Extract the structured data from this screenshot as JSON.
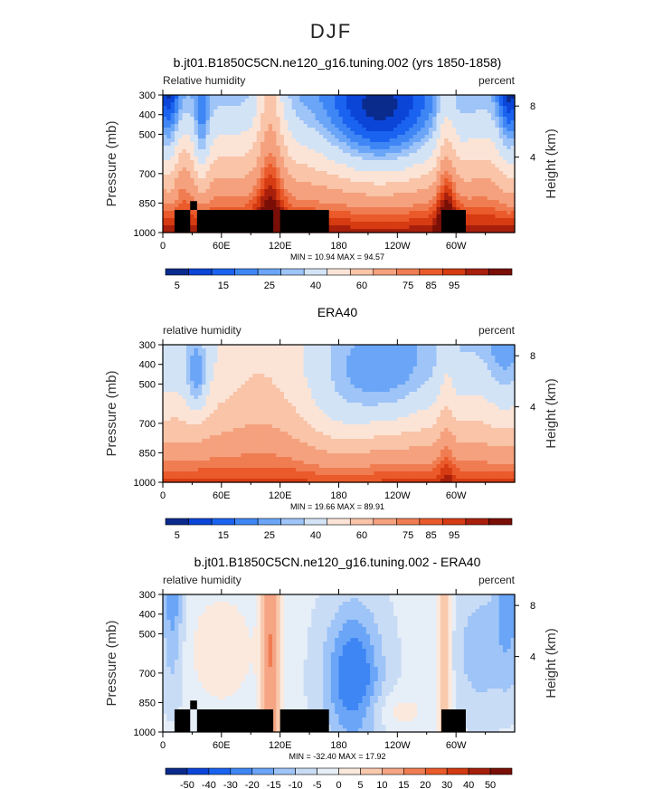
{
  "figure_title": "DJF",
  "colors": {
    "relhum": [
      "#0a2a8c",
      "#0b45d8",
      "#1a63f0",
      "#3f86f5",
      "#6aa5f7",
      "#9ec4f8",
      "#d3e3f6",
      "#fbe4d6",
      "#f9c4a8",
      "#f5a17e",
      "#f07d52",
      "#ea5a2a",
      "#d63b12",
      "#a8200c",
      "#7a0f07"
    ],
    "diff": [
      "#0a2a8c",
      "#0b45d8",
      "#1a63f0",
      "#3f86f5",
      "#6aa5f7",
      "#9ec4f8",
      "#c9dcf5",
      "#e6eef8",
      "#fbe9dd",
      "#f9c9ad",
      "#f5a584",
      "#f07d52",
      "#ea5a2a",
      "#d13a12",
      "#a51f0b",
      "#7a0f07"
    ],
    "land": "#000000"
  },
  "chart_data": [
    {
      "type": "heatmap",
      "title": "b.jt01.B1850C5CN.ne120_g16.tuning.002 (yrs 1850-1858)",
      "left_label": "Relative humidity",
      "right_label": "percent",
      "ylabel": "Pressure (mb)",
      "ylabel_right": "Height (km)",
      "x_ticks": [
        "0",
        "60E",
        "120E",
        "180",
        "120W",
        "60W"
      ],
      "x_tick_lon": [
        0,
        60,
        120,
        180,
        240,
        300
      ],
      "xlim": [
        0,
        360
      ],
      "y_ticks": [
        "300",
        "400",
        "500",
        "700",
        "850",
        "1000"
      ],
      "y_tick_p": [
        300,
        400,
        500,
        700,
        850,
        1000
      ],
      "ylim": [
        1000,
        300
      ],
      "height_ticks": [
        "8",
        "4"
      ],
      "height_tick_p": [
        356,
        616
      ],
      "stats": "MIN =  10.94  MAX =  94.57",
      "colorbar_labels": [
        "5",
        "15",
        "25",
        "40",
        "60",
        "75",
        "85",
        "95"
      ],
      "colorbar_label_idx": [
        1,
        3,
        5,
        7,
        9,
        11,
        12,
        13
      ],
      "field": "model",
      "land": [
        [
          12,
          885,
          1000
        ],
        [
          28,
          840,
          1000
        ],
        [
          35,
          885,
          1000
        ],
        [
          113,
          885,
          1000
        ],
        [
          120,
          885,
          1000
        ],
        [
          170,
          885,
          1000
        ],
        [
          285,
          885,
          1000
        ],
        [
          310,
          885,
          1000
        ]
      ]
    },
    {
      "type": "heatmap",
      "title": "ERA40",
      "left_label": "relative humidity",
      "right_label": "percent",
      "ylabel": "Pressure (mb)",
      "ylabel_right": "Height (km)",
      "x_ticks": [
        "0",
        "60E",
        "120E",
        "180",
        "120W",
        "60W"
      ],
      "x_tick_lon": [
        0,
        60,
        120,
        180,
        240,
        300
      ],
      "xlim": [
        0,
        360
      ],
      "y_ticks": [
        "300",
        "400",
        "500",
        "700",
        "850",
        "1000"
      ],
      "y_tick_p": [
        300,
        400,
        500,
        700,
        850,
        1000
      ],
      "ylim": [
        1000,
        300
      ],
      "height_ticks": [
        "8",
        "4"
      ],
      "height_tick_p": [
        356,
        616
      ],
      "stats": "MIN =  19.66  MAX =  89.91",
      "colorbar_labels": [
        "5",
        "15",
        "25",
        "40",
        "60",
        "75",
        "85",
        "95"
      ],
      "colorbar_label_idx": [
        1,
        3,
        5,
        7,
        9,
        11,
        12,
        13
      ],
      "field": "era",
      "land": []
    },
    {
      "type": "heatmap",
      "title": "b.jt01.B1850C5CN.ne120_g16.tuning.002 - ERA40",
      "left_label": "relative humidity",
      "right_label": "percent",
      "ylabel": "Pressure (mb)",
      "ylabel_right": "Height (km)",
      "x_ticks": [
        "0",
        "60E",
        "120E",
        "180",
        "120W",
        "60W"
      ],
      "x_tick_lon": [
        0,
        60,
        120,
        180,
        240,
        300
      ],
      "xlim": [
        0,
        360
      ],
      "y_ticks": [
        "300",
        "400",
        "500",
        "700",
        "850",
        "1000"
      ],
      "y_tick_p": [
        300,
        400,
        500,
        700,
        850,
        1000
      ],
      "ylim": [
        1000,
        300
      ],
      "height_ticks": [
        "8",
        "4"
      ],
      "height_tick_p": [
        356,
        616
      ],
      "stats": "MIN = -32.40  MAX =  17.92",
      "colorbar_labels": [
        "-50",
        "-40",
        "-30",
        "-20",
        "-15",
        "-10",
        "-5",
        "0",
        "5",
        "10",
        "15",
        "20",
        "30",
        "40",
        "50"
      ],
      "colorbar_label_idx": [
        1,
        2,
        3,
        4,
        5,
        6,
        7,
        8,
        9,
        10,
        11,
        12,
        13,
        14,
        15
      ],
      "field": "diff",
      "land": [
        [
          12,
          885,
          1000
        ],
        [
          28,
          840,
          1000
        ],
        [
          35,
          885,
          1000
        ],
        [
          113,
          885,
          1000
        ],
        [
          120,
          885,
          1000
        ],
        [
          170,
          885,
          1000
        ],
        [
          285,
          885,
          1000
        ],
        [
          310,
          885,
          1000
        ]
      ]
    }
  ]
}
